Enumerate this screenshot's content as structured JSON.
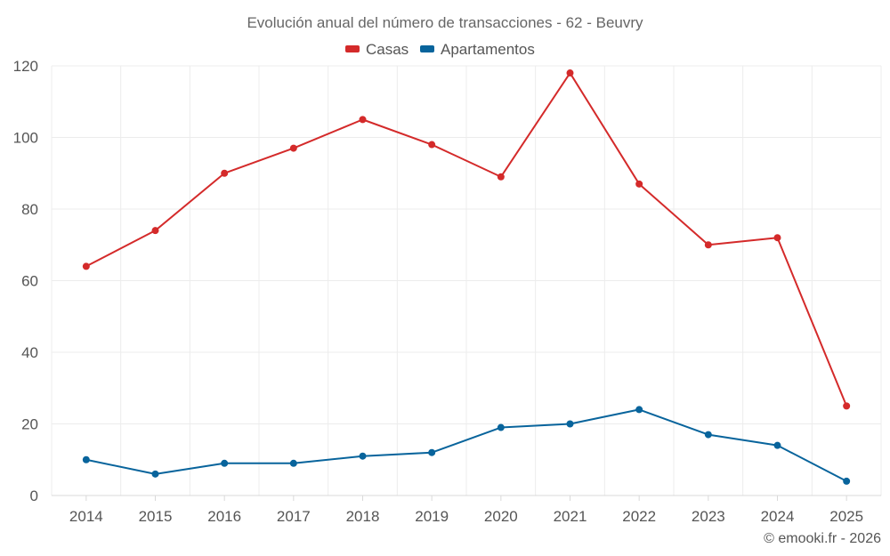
{
  "chart_data": {
    "type": "line",
    "title": "Evolución anual del número de transacciones - 62 - Beuvry",
    "categories": [
      "2014",
      "2015",
      "2016",
      "2017",
      "2018",
      "2019",
      "2020",
      "2021",
      "2022",
      "2023",
      "2024",
      "2025"
    ],
    "series": [
      {
        "name": "Casas",
        "color": "#d42a2a",
        "values": [
          64,
          74,
          90,
          97,
          105,
          98,
          89,
          118,
          87,
          70,
          72,
          25
        ]
      },
      {
        "name": "Apartamentos",
        "color": "#08649c",
        "values": [
          10,
          6,
          9,
          9,
          11,
          12,
          19,
          20,
          24,
          17,
          14,
          4
        ]
      }
    ],
    "ylim": [
      0,
      120
    ],
    "yticks": [
      0,
      20,
      40,
      60,
      80,
      100,
      120
    ],
    "xlabel": "",
    "ylabel": "",
    "grid": true,
    "legend": "top-center"
  },
  "credit": "© emooki.fr - 2026"
}
